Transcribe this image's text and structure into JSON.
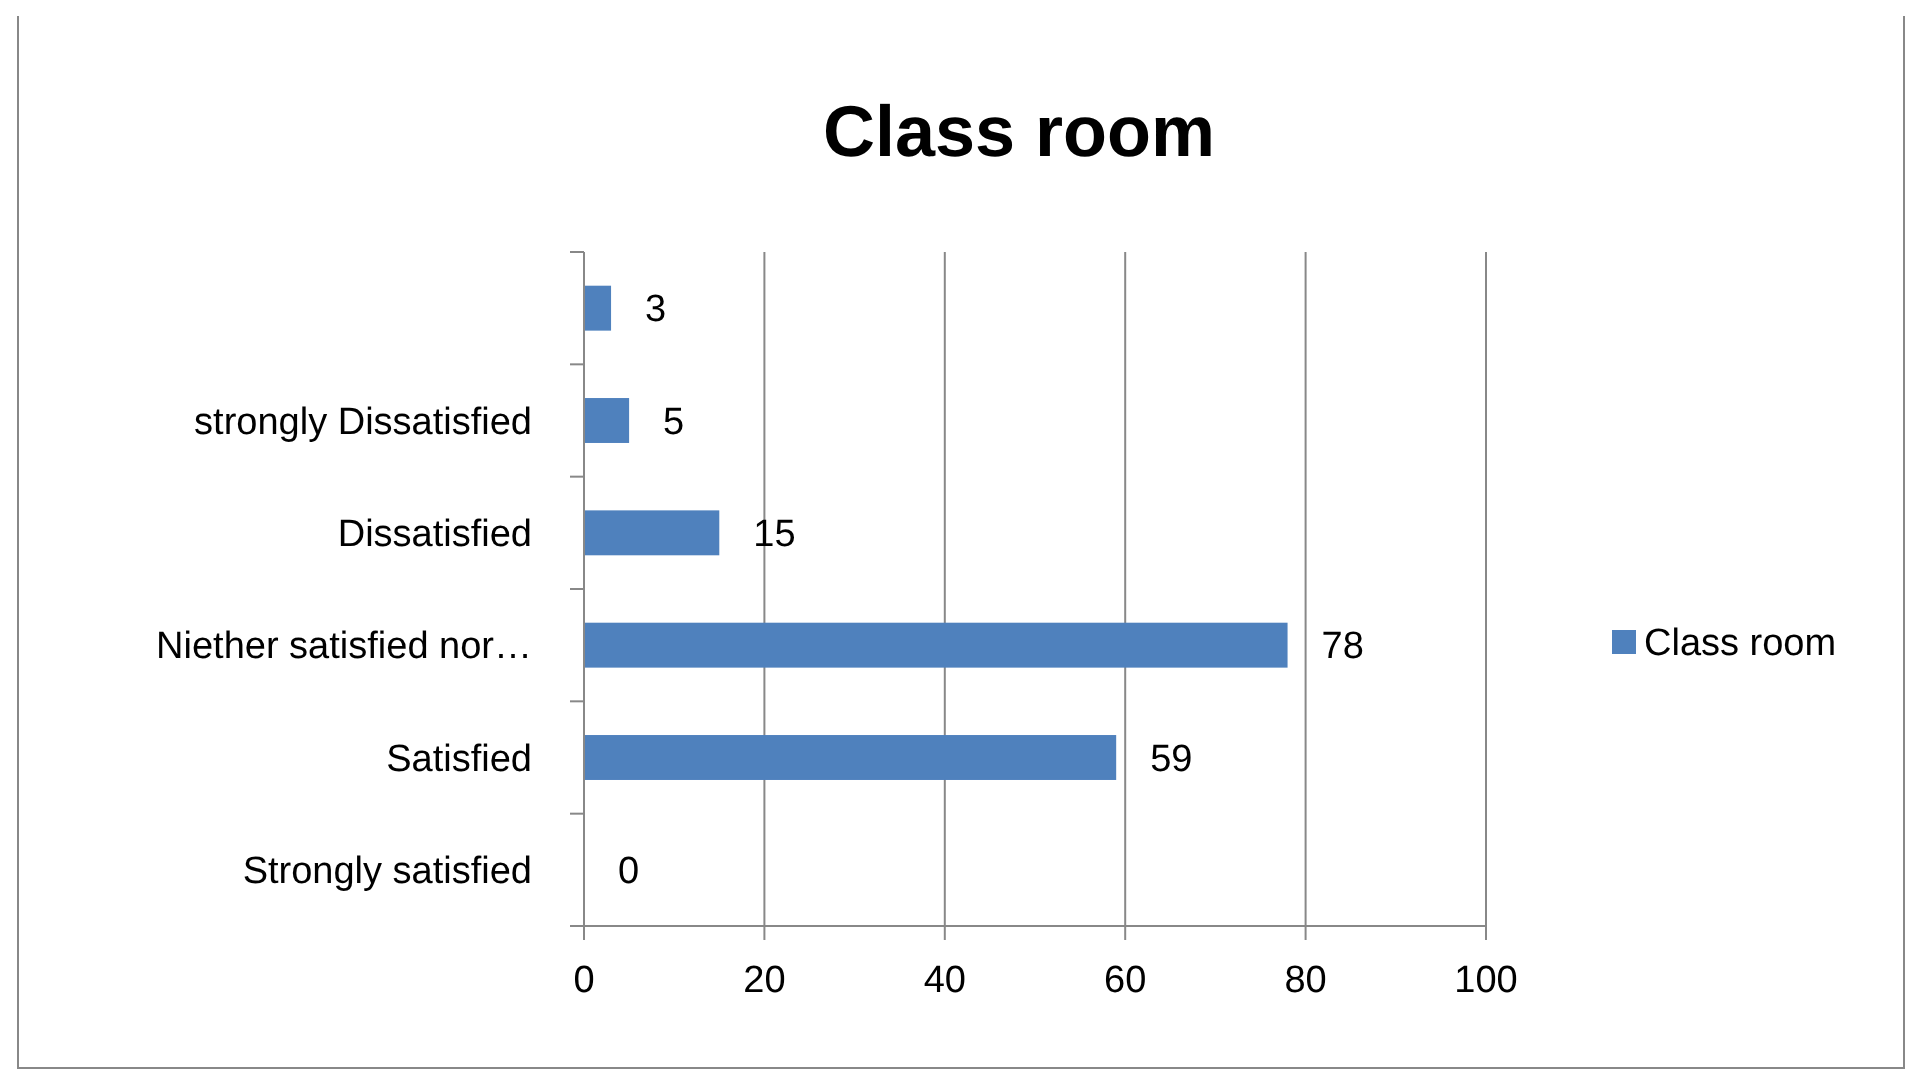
{
  "chart_data": {
    "type": "bar",
    "title": "Class room",
    "orientation": "horizontal",
    "categories": [
      null,
      "strongly Dissatisfied",
      "Dissatisfied",
      "Niether satisfied nor…",
      "Satisfied",
      "Strongly satisfied"
    ],
    "series": [
      {
        "name": "Class room",
        "color": "#4f81bd",
        "values": [
          3,
          5,
          15,
          78,
          59,
          0
        ]
      }
    ],
    "xlim": [
      0,
      100
    ],
    "xticks": [
      0,
      20,
      40,
      60,
      80,
      100
    ],
    "grid": "x",
    "legend": "right",
    "data_labels": true
  }
}
